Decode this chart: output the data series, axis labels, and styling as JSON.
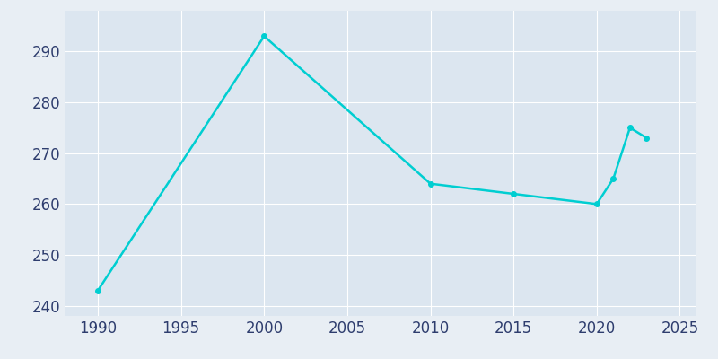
{
  "years": [
    1990,
    2000,
    2010,
    2015,
    2020,
    2021,
    2022,
    2023
  ],
  "population": [
    243,
    293,
    264,
    262,
    260,
    265,
    275,
    273
  ],
  "line_color": "#00CED1",
  "fig_bg_color": "#e8eef4",
  "axes_bg_color": "#dce6f0",
  "xlabel": "",
  "ylabel": "",
  "xlim": [
    1988,
    2026
  ],
  "ylim": [
    238,
    298
  ],
  "yticks": [
    240,
    250,
    260,
    270,
    280,
    290
  ],
  "xticks": [
    1990,
    1995,
    2000,
    2005,
    2010,
    2015,
    2020,
    2025
  ],
  "line_width": 1.8,
  "grid_color": "#ffffff",
  "tick_label_color": "#2e3d6e",
  "tick_label_fontsize": 12,
  "marker": "o",
  "marker_size": 4
}
